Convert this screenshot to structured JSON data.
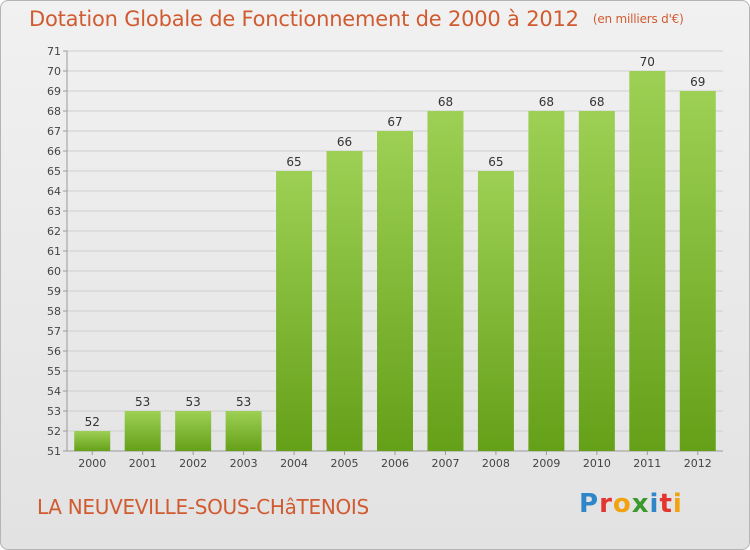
{
  "title": "Dotation Globale de Fonctionnement de 2000 à 2012",
  "subtitle": "(en milliers d'€)",
  "place_name": "LA NEUVEVILLE-SOUS-CHâTENOIS",
  "brand": {
    "text": "Proxiti",
    "letters": [
      {
        "char": "P",
        "color": "#2f86c9"
      },
      {
        "char": "r",
        "color": "#e3342f"
      },
      {
        "char": "o",
        "color": "#f2a20f"
      },
      {
        "char": "x",
        "color": "#3b9a2d"
      },
      {
        "char": "i",
        "color": "#2f86c9"
      },
      {
        "char": "t",
        "color": "#e3342f"
      },
      {
        "char": "i",
        "color": "#f2a20f"
      }
    ]
  },
  "colors": {
    "title": "#d15b30",
    "bar_top": "#9dd054",
    "bar_bottom": "#65a019",
    "grid": "#cfcfcf"
  },
  "chart_data": {
    "type": "bar",
    "categories": [
      "2000",
      "2001",
      "2002",
      "2003",
      "2004",
      "2005",
      "2006",
      "2007",
      "2008",
      "2009",
      "2010",
      "2011",
      "2012"
    ],
    "values": [
      52,
      53,
      53,
      53,
      65,
      66,
      67,
      68,
      65,
      68,
      68,
      70,
      69
    ],
    "ylim": [
      51,
      71
    ],
    "yticks": [
      51,
      52,
      53,
      54,
      55,
      56,
      57,
      58,
      59,
      60,
      61,
      62,
      63,
      64,
      65,
      66,
      67,
      68,
      69,
      70,
      71
    ],
    "grid": true,
    "legend": "none"
  }
}
